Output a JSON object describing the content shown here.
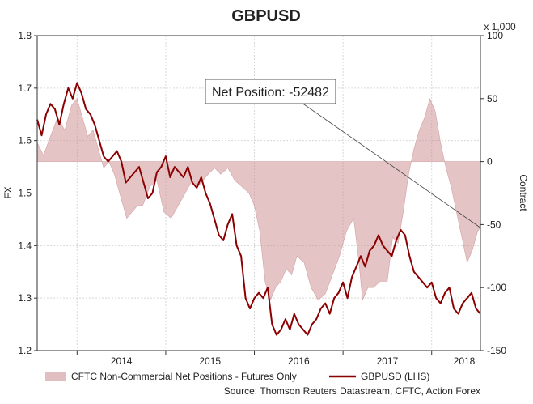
{
  "chart_data": {
    "type": "line",
    "title": "GBPUSD",
    "left_axis": {
      "label": "FX",
      "min": 1.2,
      "max": 1.8,
      "ticks": [
        "1.2",
        "1.3",
        "1.4",
        "1.5",
        "1.6",
        "1.7",
        "1.8"
      ]
    },
    "right_axis": {
      "label": "Contract",
      "unit": "x 1,000",
      "min": -150,
      "max": 100,
      "ticks": [
        "-150",
        "-100",
        "-50",
        "0",
        "50",
        "100"
      ]
    },
    "x_axis": {
      "start": 2013.55,
      "end": 2018.55,
      "year_ticks": [
        "2014",
        "2015",
        "2016",
        "2017",
        "2018"
      ]
    },
    "annotation": {
      "text": "Net Position: -52482",
      "value": -52.482
    },
    "series": [
      {
        "name": "CFTC Non-Commercial Net Positions - Futures Only",
        "axis": "right",
        "style": "area",
        "color": "#c9898b",
        "x": [
          2013.55,
          2013.62,
          2013.7,
          2013.78,
          2013.86,
          2013.94,
          2014.0,
          2014.06,
          2014.12,
          2014.18,
          2014.24,
          2014.3,
          2014.36,
          2014.42,
          2014.5,
          2014.56,
          2014.62,
          2014.68,
          2014.74,
          2014.82,
          2014.9,
          2014.98,
          2015.06,
          2015.14,
          2015.22,
          2015.3,
          2015.36,
          2015.42,
          2015.48,
          2015.55,
          2015.62,
          2015.7,
          2015.78,
          2015.86,
          2015.94,
          2016.0,
          2016.06,
          2016.12,
          2016.18,
          2016.24,
          2016.3,
          2016.36,
          2016.42,
          2016.48,
          2016.56,
          2016.64,
          2016.72,
          2016.8,
          2016.88,
          2016.96,
          2017.04,
          2017.12,
          2017.18,
          2017.22,
          2017.28,
          2017.34,
          2017.42,
          2017.5,
          2017.56,
          2017.62,
          2017.68,
          2017.74,
          2017.8,
          2017.86,
          2017.92,
          2017.98,
          2018.04,
          2018.1,
          2018.16,
          2018.22,
          2018.28,
          2018.34,
          2018.4,
          2018.46,
          2018.52,
          2018.55
        ],
        "values": [
          15,
          5,
          20,
          35,
          25,
          45,
          50,
          35,
          20,
          25,
          10,
          -5,
          0,
          -10,
          -30,
          -45,
          -40,
          -35,
          -35,
          -20,
          -15,
          -40,
          -45,
          -35,
          -25,
          -15,
          -20,
          -15,
          -10,
          -5,
          -10,
          -5,
          -15,
          -20,
          -25,
          -35,
          -55,
          -95,
          -110,
          -100,
          -95,
          -85,
          -90,
          -75,
          -80,
          -100,
          -110,
          -105,
          -90,
          -75,
          -55,
          -45,
          -80,
          -110,
          -100,
          -100,
          -95,
          -95,
          -60,
          -65,
          -40,
          -10,
          10,
          25,
          35,
          50,
          40,
          15,
          -5,
          -20,
          -40,
          -60,
          -80,
          -70,
          -55,
          -52.482
        ]
      },
      {
        "name": "GBPUSD (LHS)",
        "axis": "left",
        "style": "line",
        "color": "#8b0000",
        "x": [
          2013.55,
          2013.6,
          2013.65,
          2013.7,
          2013.75,
          2013.8,
          2013.85,
          2013.9,
          2013.95,
          2014.0,
          2014.05,
          2014.1,
          2014.15,
          2014.2,
          2014.25,
          2014.3,
          2014.35,
          2014.4,
          2014.45,
          2014.5,
          2014.55,
          2014.6,
          2014.65,
          2014.7,
          2014.75,
          2014.8,
          2014.85,
          2014.9,
          2014.95,
          2015.0,
          2015.05,
          2015.1,
          2015.15,
          2015.2,
          2015.25,
          2015.3,
          2015.35,
          2015.4,
          2015.45,
          2015.5,
          2015.55,
          2015.6,
          2015.65,
          2015.7,
          2015.75,
          2015.8,
          2015.85,
          2015.9,
          2015.95,
          2016.0,
          2016.05,
          2016.1,
          2016.15,
          2016.2,
          2016.25,
          2016.3,
          2016.35,
          2016.4,
          2016.45,
          2016.5,
          2016.55,
          2016.6,
          2016.65,
          2016.7,
          2016.75,
          2016.8,
          2016.85,
          2016.9,
          2016.95,
          2017.0,
          2017.05,
          2017.1,
          2017.15,
          2017.2,
          2017.25,
          2017.3,
          2017.35,
          2017.4,
          2017.45,
          2017.5,
          2017.55,
          2017.6,
          2017.65,
          2017.7,
          2017.75,
          2017.8,
          2017.85,
          2017.9,
          2017.95,
          2018.0,
          2018.05,
          2018.1,
          2018.15,
          2018.2,
          2018.25,
          2018.3,
          2018.35,
          2018.4,
          2018.45,
          2018.5,
          2018.55
        ],
        "values": [
          1.64,
          1.61,
          1.65,
          1.67,
          1.66,
          1.63,
          1.67,
          1.7,
          1.68,
          1.71,
          1.69,
          1.66,
          1.65,
          1.63,
          1.6,
          1.57,
          1.56,
          1.57,
          1.58,
          1.56,
          1.52,
          1.53,
          1.54,
          1.55,
          1.52,
          1.49,
          1.5,
          1.54,
          1.55,
          1.57,
          1.53,
          1.55,
          1.54,
          1.53,
          1.55,
          1.52,
          1.51,
          1.53,
          1.5,
          1.48,
          1.45,
          1.42,
          1.41,
          1.44,
          1.46,
          1.4,
          1.38,
          1.3,
          1.28,
          1.3,
          1.31,
          1.3,
          1.32,
          1.25,
          1.23,
          1.24,
          1.26,
          1.24,
          1.27,
          1.25,
          1.24,
          1.23,
          1.25,
          1.26,
          1.28,
          1.29,
          1.27,
          1.3,
          1.31,
          1.33,
          1.3,
          1.34,
          1.36,
          1.38,
          1.36,
          1.39,
          1.4,
          1.42,
          1.4,
          1.39,
          1.38,
          1.41,
          1.43,
          1.42,
          1.38,
          1.35,
          1.34,
          1.33,
          1.32,
          1.33,
          1.3,
          1.29,
          1.31,
          1.32,
          1.28,
          1.27,
          1.29,
          1.3,
          1.31,
          1.28,
          1.27
        ]
      }
    ]
  },
  "legend": {
    "area_label": "CFTC Non-Commercial Net Positions - Futures Only",
    "line_label": "GBPUSD (LHS)"
  },
  "source": "Source: Thomson Reuters Datastream, CFTC, Action Forex",
  "colors": {
    "area": "#c9898b",
    "line": "#8b0000",
    "grid": "#d8d8d8",
    "axis": "#333333"
  }
}
